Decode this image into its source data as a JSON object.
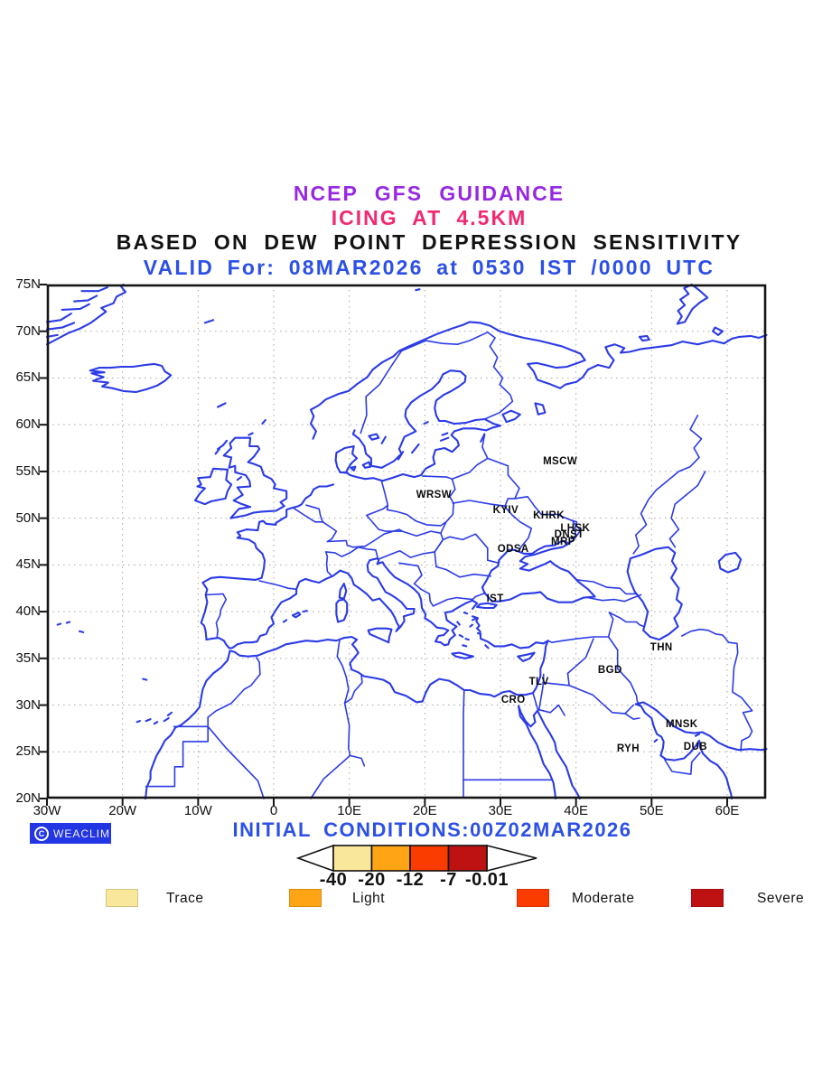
{
  "header": {
    "line1": {
      "text": "NCEP GFS GUIDANCE",
      "color": "#9727E3"
    },
    "line2": {
      "text": "ICING AT 4.5KM",
      "color": "#F12973"
    },
    "line3": {
      "text": "BASED ON DEW POINT DEPRESSION SENSITIVITY",
      "color": "#121212"
    },
    "line4": {
      "text": "VALID For: 08MAR2026 at 0530 IST /0000 UTC",
      "color": "#2C50E6"
    }
  },
  "map": {
    "coast_color": "#2B3BE6",
    "grid_color": "#A6A6A6",
    "frame_color": "#161616",
    "x_ticks": [
      {
        "label": "30W",
        "lon": -30
      },
      {
        "label": "20W",
        "lon": -20
      },
      {
        "label": "10W",
        "lon": -10
      },
      {
        "label": "0",
        "lon": 0
      },
      {
        "label": "10E",
        "lon": 10
      },
      {
        "label": "20E",
        "lon": 20
      },
      {
        "label": "30E",
        "lon": 30
      },
      {
        "label": "40E",
        "lon": 40
      },
      {
        "label": "50E",
        "lon": 50
      },
      {
        "label": "60E",
        "lon": 60
      }
    ],
    "y_ticks": [
      {
        "label": "75N",
        "lat": 75
      },
      {
        "label": "70N",
        "lat": 70
      },
      {
        "label": "65N",
        "lat": 65
      },
      {
        "label": "60N",
        "lat": 60
      },
      {
        "label": "55N",
        "lat": 55
      },
      {
        "label": "50N",
        "lat": 50
      },
      {
        "label": "45N",
        "lat": 45
      },
      {
        "label": "40N",
        "lat": 40
      },
      {
        "label": "35N",
        "lat": 35
      },
      {
        "label": "30N",
        "lat": 30
      },
      {
        "label": "25N",
        "lat": 25
      },
      {
        "label": "20N",
        "lat": 20
      }
    ],
    "cities": [
      {
        "label": "MSCW",
        "lon": 37.9,
        "lat": 56.1
      },
      {
        "label": "WRSW",
        "lon": 21.2,
        "lat": 52.5
      },
      {
        "label": "KYIV",
        "lon": 30.7,
        "lat": 50.8
      },
      {
        "label": "KHRK",
        "lon": 36.4,
        "lat": 50.3
      },
      {
        "label": "LHSK",
        "lon": 39.9,
        "lat": 48.9
      },
      {
        "label": "DNST",
        "lon": 39.1,
        "lat": 48.2
      },
      {
        "label": "MRP",
        "lon": 38.3,
        "lat": 47.5
      },
      {
        "label": "ODSA",
        "lon": 31.7,
        "lat": 46.7
      },
      {
        "label": "IST",
        "lon": 29.3,
        "lat": 41.4
      },
      {
        "label": "THN",
        "lon": 51.3,
        "lat": 36.1
      },
      {
        "label": "BGD",
        "lon": 44.5,
        "lat": 33.7
      },
      {
        "label": "TLV",
        "lon": 35.1,
        "lat": 32.5
      },
      {
        "label": "CRO",
        "lon": 31.7,
        "lat": 30.5
      },
      {
        "label": "MNSK",
        "lon": 54.0,
        "lat": 27.9
      },
      {
        "label": "RYH",
        "lon": 46.9,
        "lat": 25.3
      },
      {
        "label": "DUB",
        "lon": 55.8,
        "lat": 25.5
      }
    ]
  },
  "footer": {
    "badge": {
      "text": "WEACLIM",
      "bg": "#2336E3",
      "icon": "copyright-icon"
    },
    "initial_conditions": {
      "text": "INITIAL CONDITIONS:00Z02MAR2026",
      "color": "#2C50E6"
    }
  },
  "colorbar": {
    "values": [
      "-40",
      "-20",
      "-12",
      "-7",
      "-0.01"
    ],
    "colors": [
      "#F9E79B",
      "#FFA414",
      "#FA3C00",
      "#BE1212"
    ]
  },
  "legend": {
    "items": [
      {
        "label": "Trace",
        "color": "#F9E79B"
      },
      {
        "label": "Light",
        "color": "#FFA414"
      },
      {
        "label": "Moderate",
        "color": "#FA3C00"
      },
      {
        "label": "Severe",
        "color": "#BE1212"
      }
    ]
  },
  "chart_data": {
    "type": "map",
    "title": "NCEP GFS GUIDANCE",
    "subtitle": "ICING AT 4.5KM — BASED ON DEW POINT DEPRESSION SENSITIVITY",
    "valid_time": "08MAR2026 at 0530 IST /0000 UTC",
    "initial_conditions": "00Z02MAR2026",
    "projection": "equirectangular",
    "lon_range": [
      -30,
      65
    ],
    "lat_range": [
      20,
      75
    ],
    "x_tick_labels": [
      "30W",
      "20W",
      "10W",
      "0",
      "10E",
      "20E",
      "30E",
      "40E",
      "50E",
      "60E"
    ],
    "y_tick_labels": [
      "75N",
      "70N",
      "65N",
      "60N",
      "55N",
      "50N",
      "45N",
      "40N",
      "35N",
      "30N",
      "25N",
      "20N"
    ],
    "grid": "dotted, 10-degree longitude and 5-degree latitude spacing",
    "colorbar_levels": [
      -40,
      -20,
      -12,
      -7,
      -0.01
    ],
    "severity_categories": [
      "Trace",
      "Light",
      "Moderate",
      "Severe"
    ],
    "severity_colors": [
      "#F9E79B",
      "#FFA414",
      "#FA3C00",
      "#BE1212"
    ],
    "shaded_icing_regions": "none visible on map (coastlines and borders only)",
    "station_labels": [
      "MSCW",
      "WRSW",
      "KYIV",
      "KHRK",
      "LHSK",
      "DNST",
      "MRP",
      "ODSA",
      "IST",
      "THN",
      "BGD",
      "TLV",
      "CRO",
      "MNSK",
      "RYH",
      "DUB"
    ]
  }
}
